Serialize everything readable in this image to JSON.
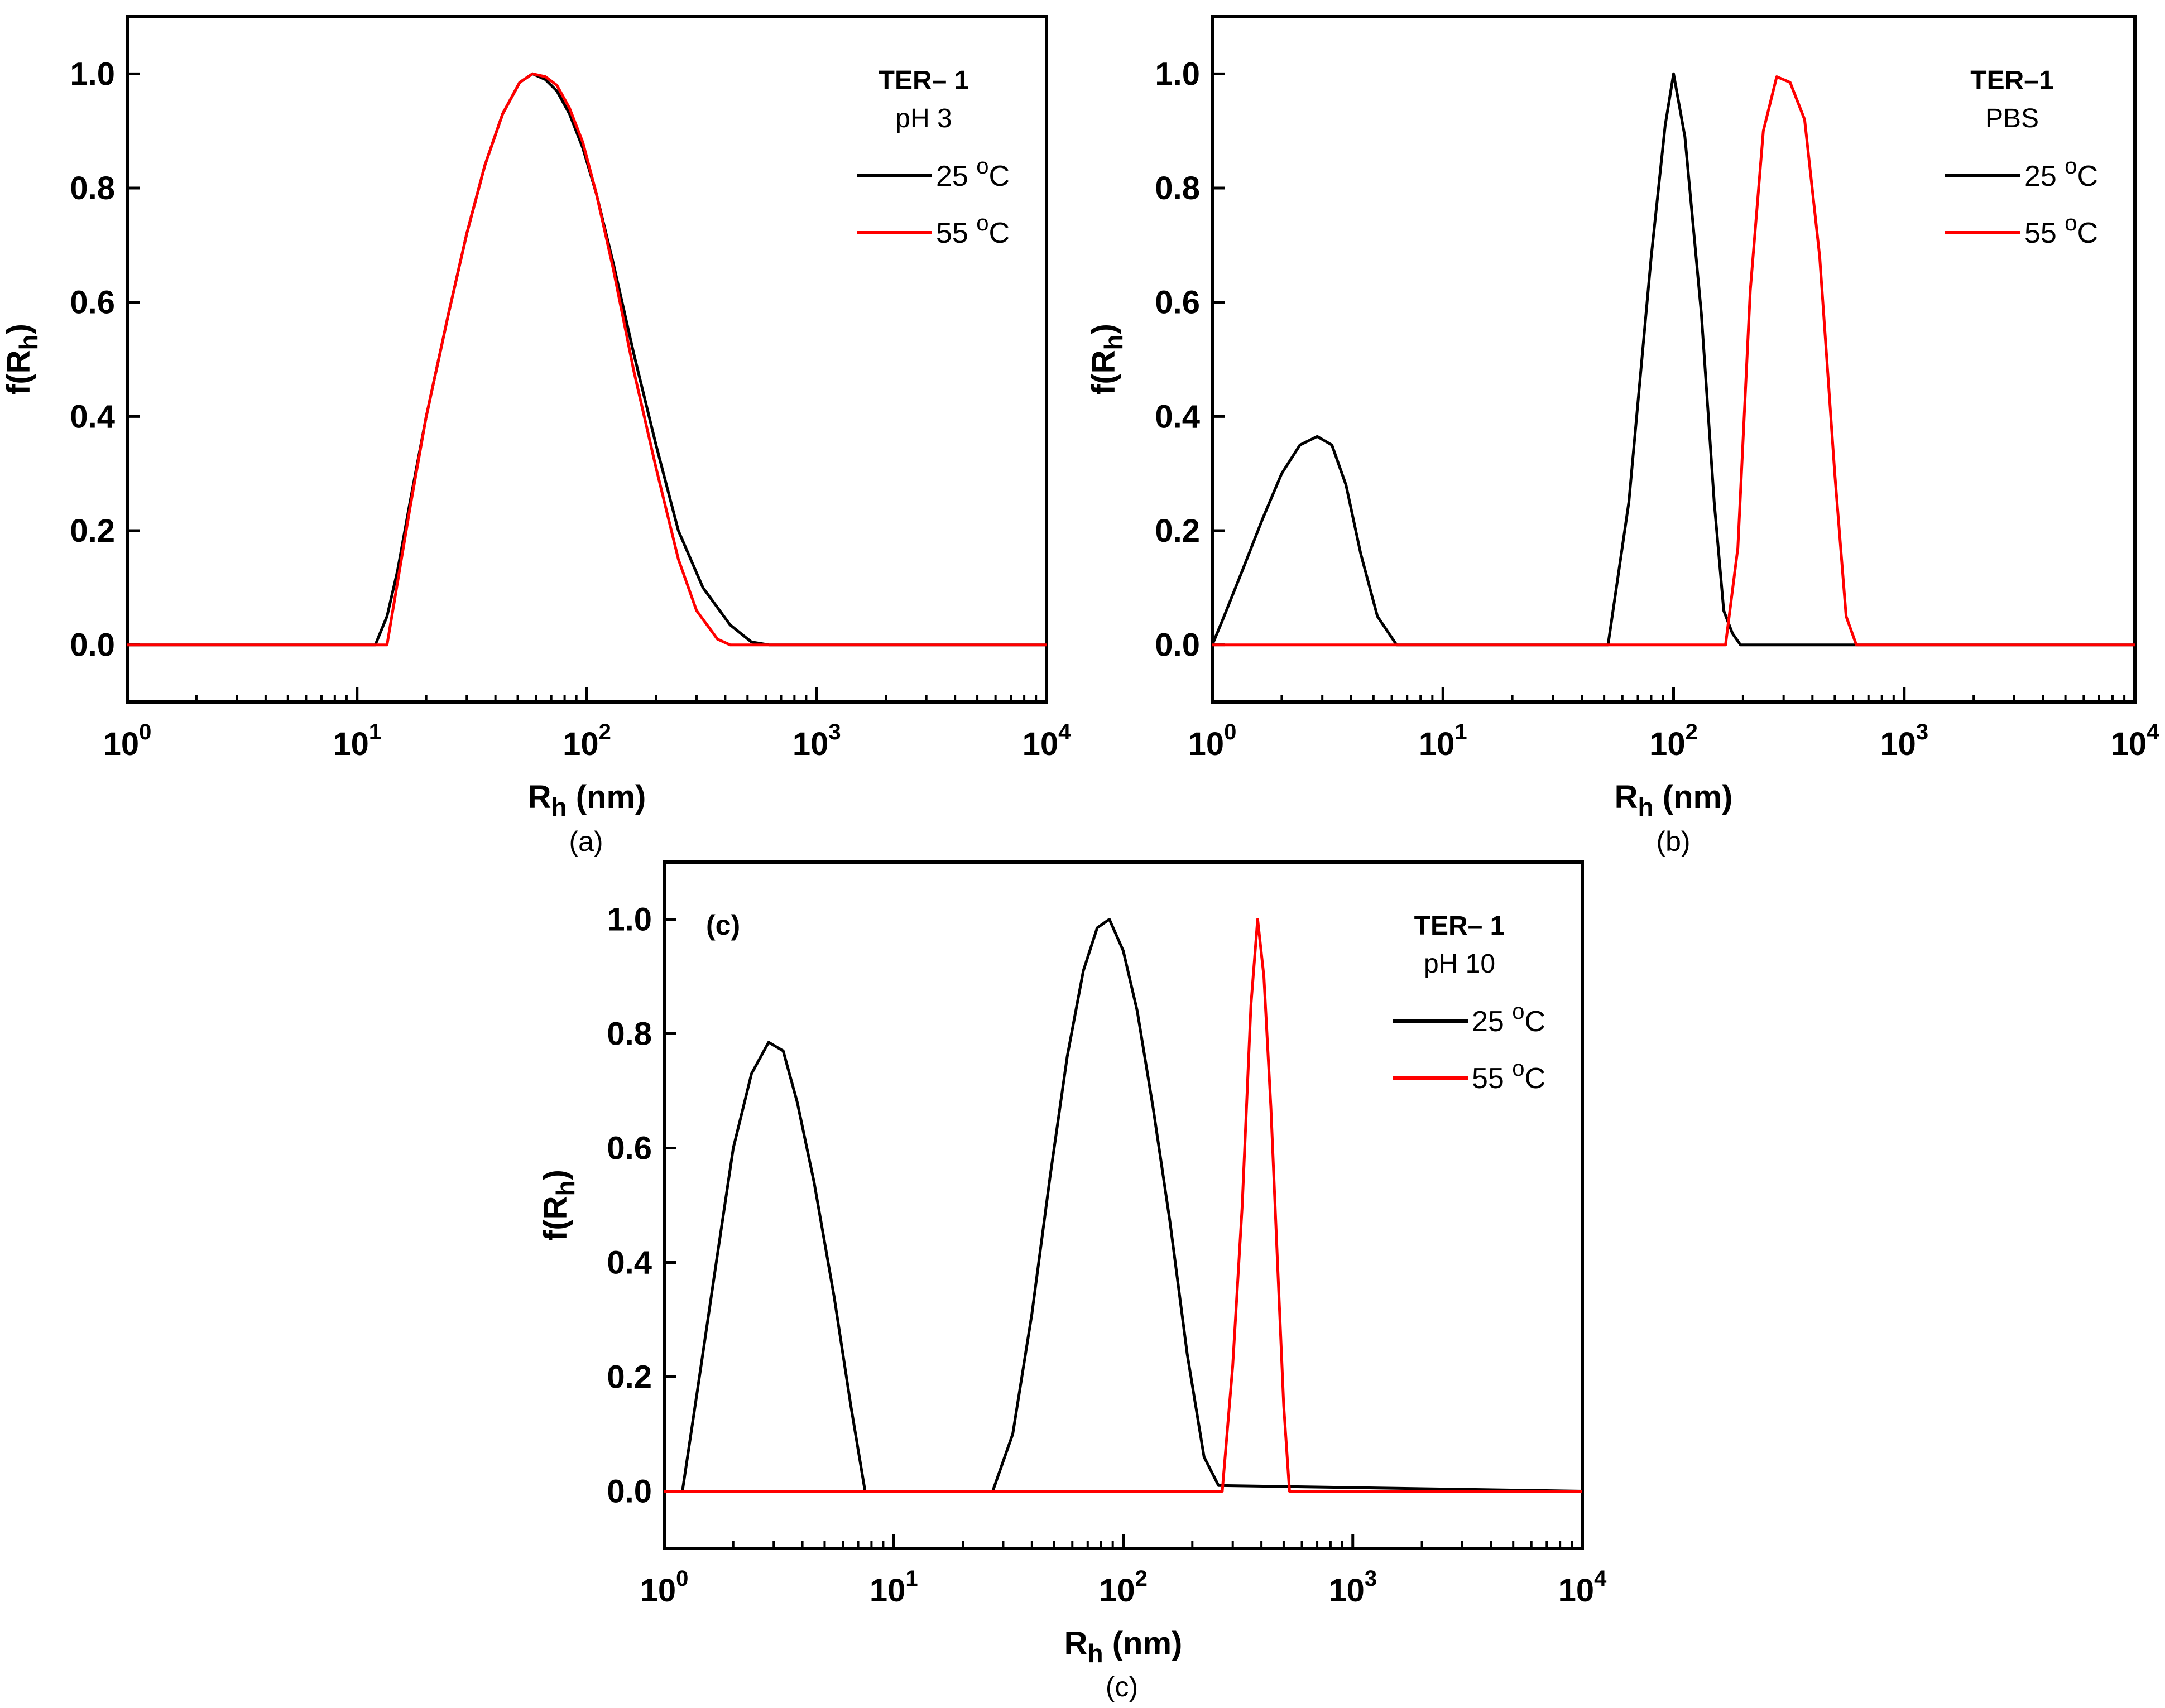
{
  "chart_data": [
    {
      "type": "line",
      "panel": "a",
      "caption": "(a)",
      "inner_label": "",
      "legend_title": "TER– 1",
      "legend_subtitle": "pH 3",
      "xscale": "log",
      "xlim": [
        1,
        10000
      ],
      "ylim": [
        -0.1,
        1.1
      ],
      "yticks": [
        0.0,
        0.2,
        0.4,
        0.6,
        0.8,
        1.0
      ],
      "ytick_labels": [
        "0.0",
        "0.2",
        "0.4",
        "0.6",
        "0.8",
        "1.0"
      ],
      "xtick_bases": [
        "10",
        "10",
        "10",
        "10",
        "10"
      ],
      "xtick_exps": [
        "0",
        "1",
        "2",
        "3",
        "4"
      ],
      "xlabel_main": "R",
      "xlabel_sub": "h",
      "xlabel_unit": " (nm)",
      "ylabel_main": "f(R",
      "ylabel_sub": "h",
      "ylabel_close": ")",
      "series": [
        {
          "name": "25 °C",
          "legend_text": "25 ",
          "legend_sup": "o",
          "legend_unit": "C",
          "color": "#000000",
          "x": [
            1,
            12,
            13.5,
            15,
            17,
            20,
            25,
            30,
            36,
            43,
            51,
            58,
            66,
            74,
            84,
            96,
            110,
            130,
            160,
            200,
            250,
            320,
            420,
            520,
            620,
            10000
          ],
          "y": [
            0,
            0,
            0.05,
            0.13,
            0.25,
            0.4,
            0.58,
            0.72,
            0.84,
            0.93,
            0.985,
            1.0,
            0.99,
            0.97,
            0.93,
            0.87,
            0.79,
            0.67,
            0.51,
            0.35,
            0.2,
            0.1,
            0.035,
            0.005,
            0,
            0
          ]
        },
        {
          "name": "55 °C",
          "legend_text": "55 ",
          "legend_sup": "o",
          "legend_unit": "C",
          "color": "#ff0000",
          "x": [
            1,
            13.5,
            15,
            17,
            20,
            25,
            30,
            36,
            43,
            51,
            58,
            66,
            74,
            84,
            96,
            110,
            130,
            160,
            200,
            250,
            300,
            370,
            420,
            10000
          ],
          "y": [
            0,
            0,
            0.11,
            0.24,
            0.4,
            0.58,
            0.72,
            0.84,
            0.93,
            0.985,
            1.0,
            0.995,
            0.98,
            0.94,
            0.88,
            0.79,
            0.66,
            0.48,
            0.31,
            0.15,
            0.06,
            0.01,
            0,
            0
          ]
        }
      ]
    },
    {
      "type": "line",
      "panel": "b",
      "caption": "(b)",
      "inner_label": "",
      "legend_title": "TER–1",
      "legend_subtitle": "PBS",
      "xscale": "log",
      "xlim": [
        1,
        10000
      ],
      "ylim": [
        -0.1,
        1.1
      ],
      "yticks": [
        0.0,
        0.2,
        0.4,
        0.6,
        0.8,
        1.0
      ],
      "ytick_labels": [
        "0.0",
        "0.2",
        "0.4",
        "0.6",
        "0.8",
        "1.0"
      ],
      "xtick_bases": [
        "10",
        "10",
        "10",
        "10",
        "10"
      ],
      "xtick_exps": [
        "0",
        "1",
        "2",
        "3",
        "4"
      ],
      "xlabel_main": "R",
      "xlabel_sub": "h",
      "xlabel_unit": " (nm)",
      "ylabel_main": "f(R",
      "ylabel_sub": "h",
      "ylabel_close": ")",
      "series": [
        {
          "name": "25 °C",
          "legend_text": "25 ",
          "legend_sup": "o",
          "legend_unit": "C",
          "color": "#000000",
          "x": [
            1,
            1.1,
            1.35,
            1.65,
            2.0,
            2.4,
            2.85,
            3.3,
            3.8,
            4.4,
            5.2,
            6.3,
            52,
            64,
            80,
            92,
            100,
            112,
            132,
            150,
            165,
            180,
            195,
            10000
          ],
          "y": [
            0,
            0.04,
            0.13,
            0.22,
            0.3,
            0.35,
            0.365,
            0.35,
            0.28,
            0.16,
            0.05,
            0,
            0,
            0.25,
            0.68,
            0.91,
            1.0,
            0.89,
            0.58,
            0.25,
            0.06,
            0.02,
            0,
            0
          ]
        },
        {
          "name": "55 °C",
          "legend_text": "55 ",
          "legend_sup": "o",
          "legend_unit": "C",
          "color": "#ff0000",
          "x": [
            1,
            168,
            190,
            215,
            245,
            280,
            320,
            370,
            430,
            500,
            560,
            620,
            10000
          ],
          "y": [
            0,
            0,
            0.17,
            0.62,
            0.9,
            0.995,
            0.985,
            0.92,
            0.68,
            0.3,
            0.05,
            0,
            0
          ]
        }
      ]
    },
    {
      "type": "line",
      "panel": "c",
      "caption": "(c)",
      "inner_label": "(c)",
      "legend_title": "TER– 1",
      "legend_subtitle": "pH 10",
      "xscale": "log",
      "xlim": [
        1,
        10000
      ],
      "ylim": [
        -0.1,
        1.1
      ],
      "yticks": [
        0.0,
        0.2,
        0.4,
        0.6,
        0.8,
        1.0
      ],
      "ytick_labels": [
        "0.0",
        "0.2",
        "0.4",
        "0.6",
        "0.8",
        "1.0"
      ],
      "xtick_bases": [
        "10",
        "10",
        "10",
        "10",
        "10"
      ],
      "xtick_exps": [
        "0",
        "1",
        "2",
        "3",
        "4"
      ],
      "xlabel_main": "R",
      "xlabel_sub": "h",
      "xlabel_unit": " (nm)",
      "ylabel_main": "f(R",
      "ylabel_sub": "h",
      "ylabel_close": ")",
      "series": [
        {
          "name": "25 °C",
          "legend_text": "25 ",
          "legend_sup": "o",
          "legend_unit": "C",
          "color": "#000000",
          "x": [
            1,
            1.2,
            1.4,
            1.7,
            2.0,
            2.4,
            2.85,
            3.3,
            3.8,
            4.5,
            5.5,
            6.5,
            7.5,
            27,
            33,
            40,
            48,
            57,
            67,
            77,
            87,
            100,
            115,
            135,
            160,
            190,
            225,
            260,
            10000
          ],
          "y": [
            0,
            0,
            0.18,
            0.41,
            0.6,
            0.73,
            0.785,
            0.77,
            0.68,
            0.54,
            0.34,
            0.15,
            0,
            0,
            0.1,
            0.31,
            0.55,
            0.76,
            0.91,
            0.985,
            1.0,
            0.945,
            0.84,
            0.67,
            0.47,
            0.24,
            0.06,
            0.01,
            0
          ]
        },
        {
          "name": "55 °C",
          "legend_text": "55 ",
          "legend_sup": "o",
          "legend_unit": "C",
          "color": "#ff0000",
          "x": [
            1,
            270,
            300,
            330,
            360,
            385,
            410,
            440,
            470,
            500,
            530,
            10000
          ],
          "y": [
            0,
            0,
            0.22,
            0.5,
            0.85,
            1.0,
            0.9,
            0.67,
            0.4,
            0.15,
            0,
            0
          ]
        }
      ]
    }
  ]
}
